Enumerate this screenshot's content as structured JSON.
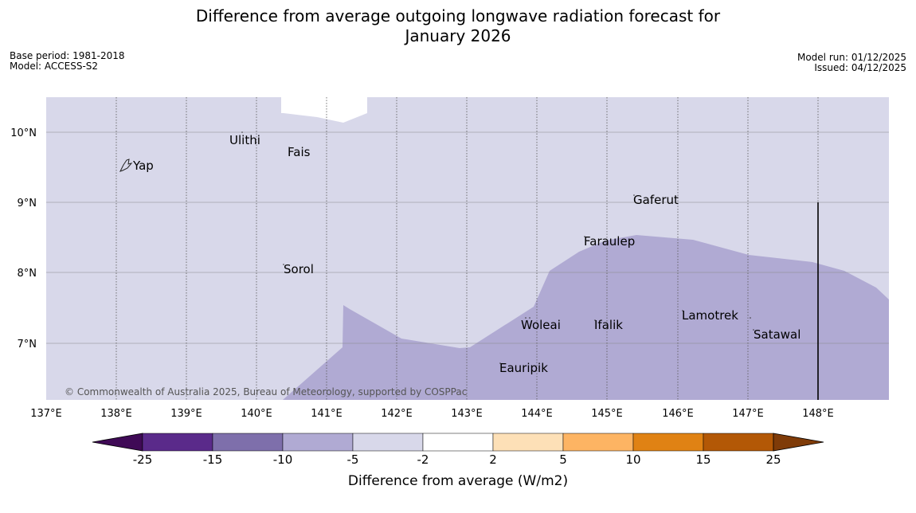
{
  "title": {
    "line1": "Difference from average outgoing longwave radiation forecast for",
    "line2": "January 2026"
  },
  "meta": {
    "base_period": "Base period: 1981-2018",
    "model": "Model: ACCESS-S2",
    "model_run": "Model run: 01/12/2025",
    "issued": "Issued: 04/12/2025"
  },
  "map": {
    "lon_labels": [
      "137°E",
      "138°E",
      "139°E",
      "140°E",
      "141°E",
      "142°E",
      "143°E",
      "144°E",
      "145°E",
      "146°E",
      "147°E",
      "148°E"
    ],
    "lat_labels": [
      "10°N",
      "9°N",
      "8°N",
      "7°N"
    ],
    "places": [
      {
        "name": "Yap",
        "lon": 138.1,
        "lat": 9.5
      },
      {
        "name": "Ulithi",
        "lon": 139.7,
        "lat": 9.95
      },
      {
        "name": "Fais",
        "lon": 140.5,
        "lat": 9.75
      },
      {
        "name": "Gaferut",
        "lon": 145.4,
        "lat": 9.1
      },
      {
        "name": "Faraulep",
        "lon": 144.6,
        "lat": 8.5
      },
      {
        "name": "Sorol",
        "lon": 140.4,
        "lat": 8.1
      },
      {
        "name": "Lamotrek",
        "lon": 146.05,
        "lat": 7.45
      },
      {
        "name": "Woleai",
        "lon": 143.9,
        "lat": 7.3
      },
      {
        "name": "Ifalik",
        "lon": 144.85,
        "lat": 7.3
      },
      {
        "name": "Satawal",
        "lon": 147.05,
        "lat": 7.15
      },
      {
        "name": "Eauripik",
        "lon": 143.45,
        "lat": 6.7
      }
    ],
    "copyright": "© Commonwealth of Australia 2025, Bureau of Meteorology, supported by COSPPac"
  },
  "colorbar": {
    "labels": [
      "-25",
      "-15",
      "-10",
      "-5",
      "-2",
      "2",
      "5",
      "10",
      "15",
      "25"
    ],
    "colors": [
      "#3f0a56",
      "#5a2a8a",
      "#7e6fab",
      "#b0aad3",
      "#d8d8ea",
      "#ffffff",
      "#fde0b7",
      "#fdb463",
      "#e08214",
      "#b35806",
      "#7f3b08"
    ],
    "title": "Difference from average (W/m2)"
  }
}
